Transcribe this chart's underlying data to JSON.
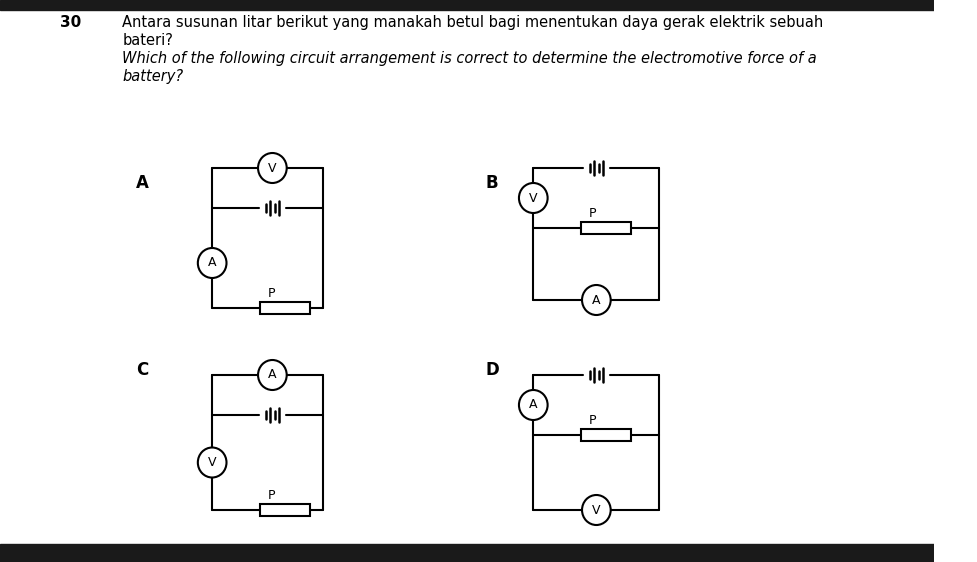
{
  "title_num": "30",
  "text_line1": "Antara susunan litar berikut yang manakah betul bagi menentukan daya gerak elektrik sebuah",
  "text_line2": "bateri?",
  "text_line3": "Which of the following circuit arrangement is correct to determine the electromotive force of a",
  "text_line4": "battery?",
  "bg_color": "#ffffff",
  "text_color": "#000000",
  "label_A": "A",
  "label_B": "B",
  "label_C": "C",
  "label_D": "D",
  "circuit_color": "#000000",
  "top_bar_color": "#1a1a1a",
  "bottom_bar_color": "#1a1a1a"
}
